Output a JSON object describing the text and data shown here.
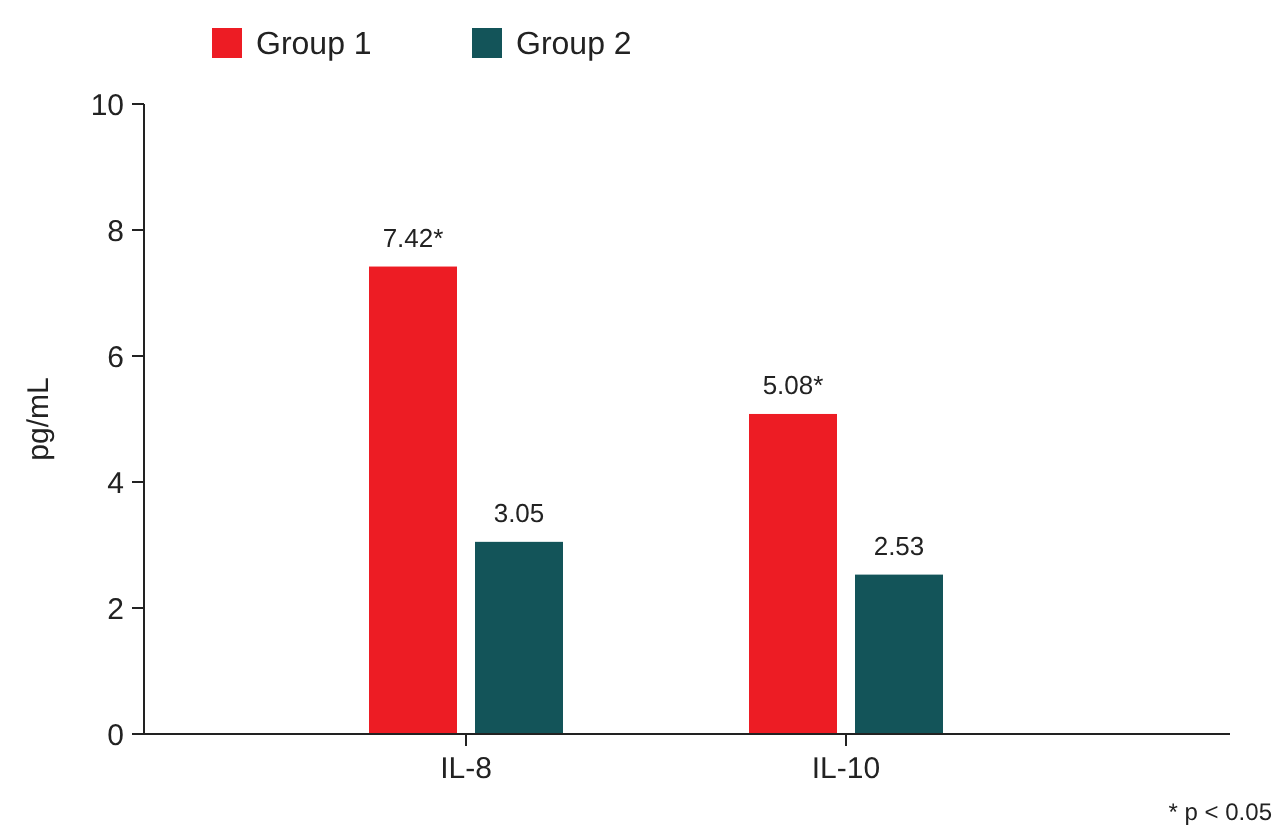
{
  "chart_data": {
    "type": "bar",
    "ylabel": "pg/mL",
    "categories": [
      "IL-8",
      "IL-10"
    ],
    "series": [
      {
        "name": "Group 1",
        "color": "#ed1c24",
        "values": [
          7.42,
          5.08
        ],
        "value_labels": [
          "7.42*",
          "5.08*"
        ]
      },
      {
        "name": "Group 2",
        "color": "#135459",
        "values": [
          3.05,
          2.53
        ],
        "value_labels": [
          "3.05",
          "2.53"
        ]
      }
    ],
    "ylim": [
      0,
      10
    ],
    "yticks": [
      0,
      2,
      4,
      6,
      8,
      10
    ],
    "grid": false,
    "legend": "top left",
    "annotations": [
      "* p < 0.05"
    ]
  }
}
